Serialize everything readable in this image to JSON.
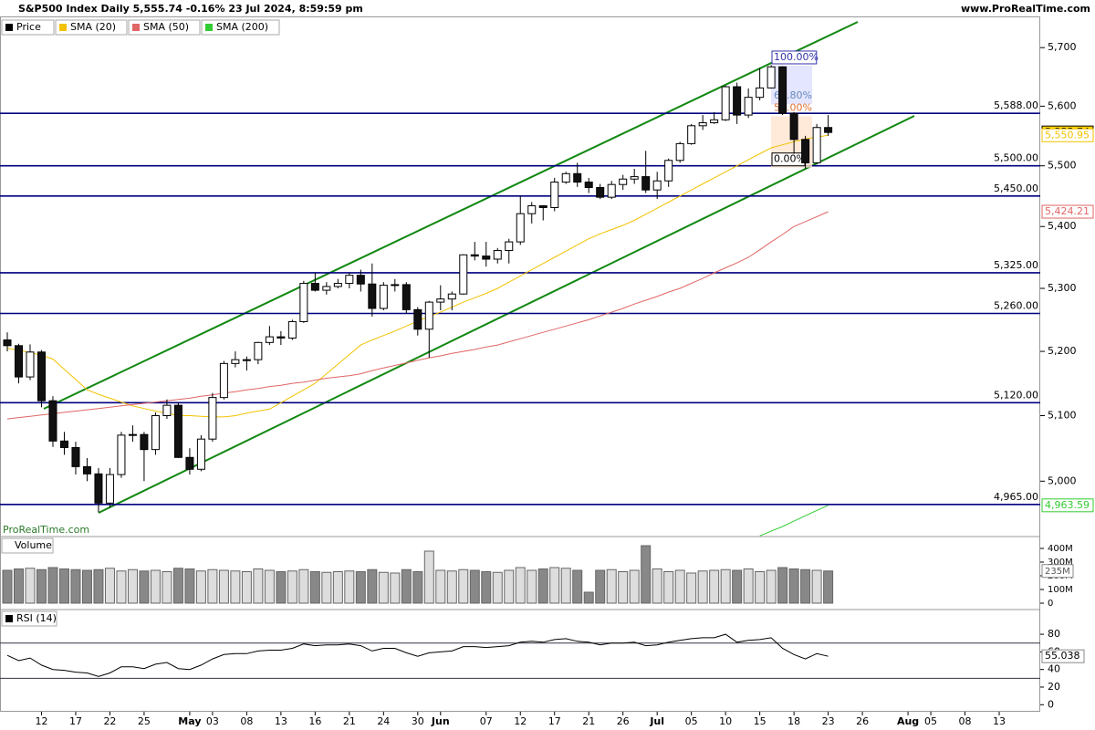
{
  "chart_data": {
    "type": "candlestick",
    "title": "S&P500 Index Daily 5,555.74 -0.16% 23 Jul 2024, 8:59:59 pm",
    "source": "www.ProRealTime.com",
    "watermark": "ProRealTime.com",
    "log_scale": true,
    "xlim": [
      -0.64,
      90.6
    ],
    "xticks": [
      {
        "value": 3,
        "label": "12"
      },
      {
        "value": 6,
        "label": "17"
      },
      {
        "value": 9,
        "label": "22"
      },
      {
        "value": 12,
        "label": "25"
      },
      {
        "value": 16,
        "label": "May"
      },
      {
        "value": 18,
        "label": "03"
      },
      {
        "value": 21,
        "label": "08"
      },
      {
        "value": 24,
        "label": "13"
      },
      {
        "value": 27,
        "label": "16"
      },
      {
        "value": 30,
        "label": "21"
      },
      {
        "value": 33,
        "label": "24"
      },
      {
        "value": 36,
        "label": "30"
      },
      {
        "value": 38,
        "label": "Jun"
      },
      {
        "value": 42,
        "label": "07"
      },
      {
        "value": 45,
        "label": "12"
      },
      {
        "value": 48,
        "label": "17"
      },
      {
        "value": 51,
        "label": "21"
      },
      {
        "value": 54,
        "label": "26"
      },
      {
        "value": 57,
        "label": "Jul"
      },
      {
        "value": 60,
        "label": "05"
      },
      {
        "value": 63,
        "label": "10"
      },
      {
        "value": 66,
        "label": "15"
      },
      {
        "value": 69,
        "label": "18"
      },
      {
        "value": 72,
        "label": "23"
      },
      {
        "value": 75,
        "label": "26"
      },
      {
        "value": 79,
        "label": "Aug"
      },
      {
        "value": 81,
        "label": "05"
      },
      {
        "value": 84,
        "label": "08"
      },
      {
        "value": 87,
        "label": "13"
      }
    ],
    "ylim": [
      4917,
      5754
    ],
    "yticks": [
      {
        "value": 5000,
        "label": "5,000"
      },
      {
        "value": 5100,
        "label": "5,100"
      },
      {
        "value": 5200,
        "label": "5,200"
      },
      {
        "value": 5300,
        "label": "5,300"
      },
      {
        "value": 5400,
        "label": "5,400"
      },
      {
        "value": 5500,
        "label": "5,500"
      },
      {
        "value": 5600,
        "label": "5,600"
      },
      {
        "value": 5700,
        "label": "5,700"
      }
    ],
    "price": {
      "name": "Price",
      "last_label": "5,555.74",
      "open": [
        5218,
        5209,
        5160,
        5199,
        5123,
        5061,
        5051,
        5022,
        5011,
        4967,
        5010,
        5070,
        5071,
        5048,
        5100,
        5116,
        5036,
        5018,
        5064,
        5128,
        5181,
        5187,
        5187,
        5214,
        5223,
        5221,
        5247,
        5308,
        5297,
        5303,
        5308,
        5321,
        5307,
        5268,
        5305,
        5306,
        5266,
        5235,
        5278,
        5283,
        5291,
        5354,
        5352,
        5347,
        5361,
        5375,
        5421,
        5434,
        5431,
        5473,
        5487,
        5473,
        5464,
        5448,
        5469,
        5478,
        5482,
        5460,
        5475,
        5509,
        5537,
        5567,
        5572,
        5577,
        5633,
        5585,
        5615,
        5631,
        5667,
        5588,
        5544,
        5505,
        5564
      ],
      "high": [
        5230,
        5212,
        5211,
        5202,
        5130,
        5075,
        5060,
        5035,
        5020,
        5020,
        5075,
        5085,
        5075,
        5105,
        5125,
        5120,
        5050,
        5070,
        5135,
        5185,
        5200,
        5192,
        5215,
        5240,
        5232,
        5250,
        5312,
        5325,
        5310,
        5315,
        5325,
        5330,
        5340,
        5310,
        5315,
        5310,
        5270,
        5280,
        5305,
        5295,
        5355,
        5375,
        5375,
        5365,
        5380,
        5450,
        5440,
        5435,
        5480,
        5490,
        5505,
        5480,
        5470,
        5475,
        5485,
        5495,
        5525,
        5490,
        5512,
        5540,
        5570,
        5585,
        5590,
        5635,
        5640,
        5630,
        5665,
        5670,
        5668,
        5590,
        5550,
        5570,
        5585
      ],
      "low": [
        5200,
        5150,
        5155,
        5113,
        5052,
        5040,
        5010,
        5000,
        4953,
        4960,
        5005,
        5060,
        5000,
        5040,
        5095,
        5035,
        5010,
        5015,
        5060,
        5125,
        5175,
        5170,
        5180,
        5210,
        5210,
        5218,
        5245,
        5295,
        5290,
        5300,
        5300,
        5295,
        5255,
        5265,
        5295,
        5260,
        5225,
        5190,
        5265,
        5265,
        5290,
        5345,
        5335,
        5340,
        5340,
        5370,
        5405,
        5410,
        5425,
        5470,
        5465,
        5455,
        5445,
        5445,
        5460,
        5470,
        5455,
        5445,
        5465,
        5505,
        5535,
        5560,
        5570,
        5575,
        5570,
        5580,
        5610,
        5630,
        5585,
        5520,
        5495,
        5503,
        5550
      ],
      "close": [
        5209,
        5160,
        5199,
        5123,
        5061,
        5051,
        5022,
        5011,
        4967,
        5010,
        5070,
        5071,
        5048,
        5100,
        5116,
        5036,
        5018,
        5064,
        5128,
        5181,
        5187,
        5187,
        5214,
        5223,
        5221,
        5247,
        5308,
        5297,
        5303,
        5308,
        5321,
        5307,
        5268,
        5305,
        5306,
        5266,
        5235,
        5278,
        5283,
        5291,
        5354,
        5352,
        5347,
        5361,
        5375,
        5421,
        5434,
        5431,
        5473,
        5487,
        5473,
        5464,
        5448,
        5469,
        5478,
        5482,
        5460,
        5475,
        5509,
        5537,
        5567,
        5572,
        5577,
        5633,
        5585,
        5615,
        5631,
        5667,
        5588,
        5544,
        5505,
        5564,
        5555.74
      ]
    },
    "series": [
      {
        "name": "SMA (20)",
        "color": "#f2c200",
        "last_label": "5,550.95",
        "values": [
          5205,
          5202,
          5198,
          5194,
          5188,
          5172,
          5156,
          5140,
          5133,
          5127,
          5121,
          5115,
          5111,
          5107,
          5104,
          5100,
          5100,
          5099,
          5098,
          5098,
          5100,
          5104,
          5107,
          5110,
          5120,
          5130,
          5140,
          5150,
          5165,
          5180,
          5195,
          5210,
          5218,
          5225,
          5232,
          5240,
          5248,
          5255,
          5262,
          5270,
          5278,
          5285,
          5292,
          5300,
          5310,
          5320,
          5330,
          5340,
          5350,
          5360,
          5370,
          5380,
          5388,
          5395,
          5402,
          5410,
          5420,
          5430,
          5440,
          5450,
          5460,
          5470,
          5480,
          5490,
          5500,
          5510,
          5520,
          5530,
          5535,
          5540,
          5545,
          5548,
          5550.95
        ]
      },
      {
        "name": "SMA (50)",
        "color": "#e06666",
        "last_label": "5,424.21",
        "values": [
          5095,
          5097,
          5099,
          5101,
          5103,
          5105,
          5107,
          5109,
          5111,
          5113,
          5115,
          5117,
          5119,
          5121,
          5123,
          5125,
          5127,
          5130,
          5132,
          5135,
          5137,
          5140,
          5142,
          5145,
          5147,
          5150,
          5152,
          5155,
          5158,
          5160,
          5162,
          5165,
          5170,
          5174,
          5178,
          5182,
          5186,
          5190,
          5193,
          5197,
          5200,
          5203,
          5207,
          5210,
          5215,
          5220,
          5225,
          5230,
          5235,
          5240,
          5245,
          5250,
          5256,
          5262,
          5268,
          5275,
          5281,
          5287,
          5294,
          5300,
          5308,
          5316,
          5325,
          5333,
          5341,
          5350,
          5362,
          5375,
          5387,
          5400,
          5408,
          5416,
          5424.21
        ]
      },
      {
        "name": "SMA (200)",
        "color": "#33cc33",
        "last_label": "4,963.59",
        "values": [
          null,
          null,
          null,
          null,
          null,
          null,
          null,
          null,
          null,
          null,
          null,
          null,
          null,
          null,
          null,
          null,
          null,
          null,
          null,
          null,
          null,
          null,
          null,
          null,
          null,
          null,
          null,
          null,
          null,
          null,
          null,
          null,
          null,
          null,
          null,
          null,
          null,
          null,
          null,
          null,
          null,
          null,
          null,
          null,
          null,
          null,
          null,
          null,
          null,
          null,
          null,
          null,
          null,
          null,
          null,
          null,
          null,
          null,
          null,
          null,
          null,
          null,
          null,
          null,
          null,
          null,
          4918,
          4925,
          4932,
          4940,
          4948,
          4956,
          4963.59
        ]
      }
    ],
    "levels": [
      {
        "value": 5588,
        "label": "5,588.00"
      },
      {
        "value": 5500,
        "label": "5,500.00"
      },
      {
        "value": 5450,
        "label": "5,450.00"
      },
      {
        "value": 5325,
        "label": "5,325.00"
      },
      {
        "value": 5260,
        "label": "5,260.00"
      },
      {
        "value": 5120,
        "label": "5,120.00"
      },
      {
        "value": 4965,
        "label": "4,965.00"
      }
    ],
    "level_color": "#000080",
    "fibonacci": {
      "high": 5669,
      "low": 5497,
      "levels": [
        {
          "value": 100,
          "label": "100.00%"
        },
        {
          "value": 61.8,
          "label": "61.80%"
        },
        {
          "value": 50,
          "label": "50.00%"
        },
        {
          "value": 0,
          "label": "0.00%"
        }
      ]
    },
    "volume": {
      "name": "Volume",
      "last_label": "235M",
      "ylim": [
        0,
        460
      ],
      "yticks": [
        0,
        {
          "value": 100,
          "label": "100M"
        },
        {
          "value": 200,
          "label": "200M"
        },
        {
          "value": 300,
          "label": "300M"
        },
        {
          "value": 400,
          "label": "400M"
        }
      ],
      "values": [
        240,
        250,
        255,
        245,
        260,
        250,
        245,
        240,
        245,
        255,
        235,
        245,
        235,
        240,
        230,
        255,
        250,
        235,
        245,
        240,
        235,
        230,
        250,
        240,
        230,
        235,
        245,
        230,
        225,
        230,
        235,
        230,
        245,
        225,
        220,
        245,
        230,
        380,
        240,
        235,
        245,
        240,
        230,
        225,
        240,
        260,
        240,
        250,
        260,
        255,
        240,
        80,
        240,
        245,
        230,
        240,
        420,
        250,
        230,
        240,
        220,
        235,
        240,
        245,
        240,
        250,
        230,
        240,
        260,
        250,
        245,
        240,
        235
      ]
    },
    "rsi": {
      "name": "RSI (14)",
      "last_label": "55.038",
      "ylim": [
        -8,
        106
      ],
      "yticks": [
        0,
        20,
        40,
        60,
        80
      ],
      "levels": [
        70,
        30
      ],
      "values": [
        56,
        50,
        53,
        45,
        40,
        39,
        37,
        36,
        32,
        36,
        43,
        43,
        41,
        46,
        48,
        41,
        40,
        45,
        52,
        57,
        58,
        58,
        61,
        62,
        62,
        64,
        69,
        67,
        68,
        68,
        69,
        67,
        61,
        64,
        64,
        59,
        55,
        59,
        60,
        61,
        66,
        66,
        65,
        66,
        67,
        71,
        72,
        71,
        74,
        75,
        72,
        71,
        68,
        70,
        70,
        71,
        67,
        68,
        71,
        73,
        75,
        76,
        76,
        80,
        71,
        73,
        74,
        76,
        64,
        57,
        52,
        58,
        55.038
      ]
    }
  }
}
